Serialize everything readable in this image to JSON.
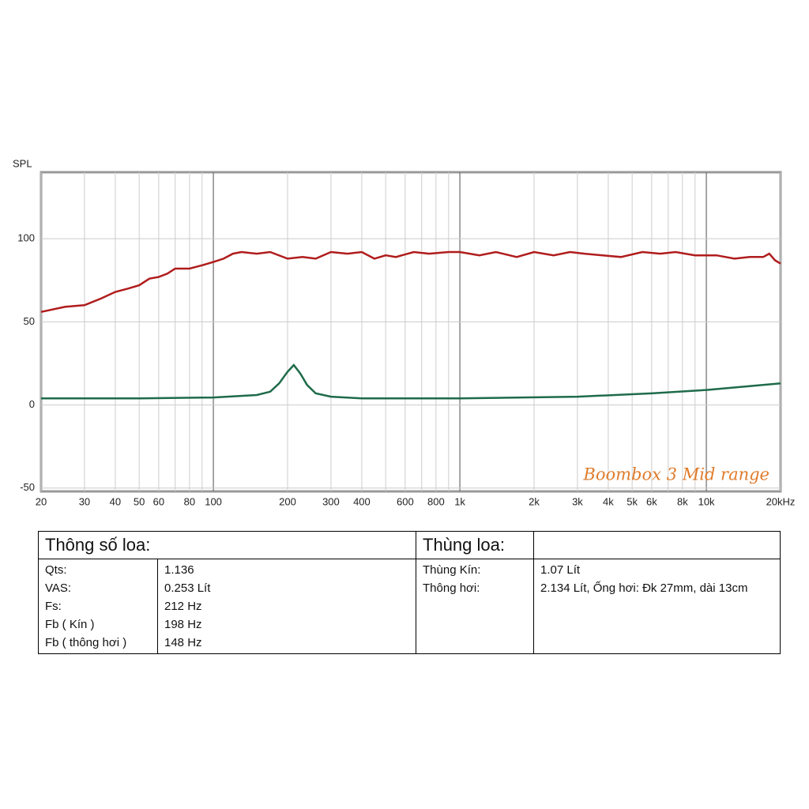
{
  "chart_data": {
    "type": "line",
    "y_label": "SPL",
    "annotation": "Boombox 3 Mid range",
    "xscale": "log",
    "grid": true,
    "xlim": [
      20,
      20000
    ],
    "ylim": [
      -52,
      140
    ],
    "yticks": [
      -50,
      0,
      50,
      100
    ],
    "xticks": [
      20,
      30,
      40,
      50,
      60,
      80,
      100,
      200,
      300,
      400,
      600,
      800,
      {
        "value": 1000,
        "label": "1k"
      },
      {
        "value": 2000,
        "label": "2k"
      },
      {
        "value": 3000,
        "label": "3k"
      },
      {
        "value": 4000,
        "label": "4k"
      },
      {
        "value": 5000,
        "label": "5k"
      },
      {
        "value": 6000,
        "label": "6k"
      },
      {
        "value": 8000,
        "label": "8k"
      },
      {
        "value": 10000,
        "label": "10k"
      },
      {
        "value": 20000,
        "label": "20kHz"
      }
    ],
    "xminor": [
      70,
      90,
      500,
      700,
      900,
      7000,
      9000
    ],
    "series": [
      {
        "color": "#b01c1c",
        "x": [
          20,
          25,
          30,
          35,
          40,
          45,
          50,
          55,
          60,
          65,
          70,
          80,
          90,
          100,
          110,
          120,
          130,
          150,
          170,
          200,
          230,
          260,
          300,
          350,
          400,
          450,
          500,
          550,
          650,
          750,
          900,
          1000,
          1200,
          1400,
          1700,
          2000,
          2400,
          2800,
          3200,
          3800,
          4500,
          5500,
          6500,
          7500,
          9000,
          11000,
          13000,
          15000,
          17000,
          18000,
          19000,
          20000
        ],
        "values": [
          56,
          59,
          60,
          64,
          68,
          70,
          72,
          76,
          77,
          79,
          82,
          82,
          84,
          86,
          88,
          91,
          92,
          91,
          92,
          88,
          89,
          88,
          92,
          91,
          92,
          88,
          90,
          89,
          92,
          91,
          92,
          92,
          90,
          92,
          89,
          92,
          90,
          92,
          91,
          90,
          89,
          92,
          91,
          92,
          90,
          90,
          88,
          89,
          89,
          91,
          87,
          85
        ]
      },
      {
        "color": "#1e6b4a",
        "x": [
          20,
          50,
          100,
          150,
          170,
          185,
          200,
          212,
          225,
          240,
          260,
          300,
          400,
          1000,
          3000,
          6000,
          10000,
          20000
        ],
        "values": [
          4,
          4,
          4.5,
          6,
          8,
          13,
          20,
          24,
          19,
          12,
          7,
          5,
          4,
          4,
          5,
          7,
          9,
          13
        ]
      }
    ]
  },
  "table": {
    "header": [
      "Thông số loa:",
      "Thùng loa:"
    ],
    "speaker_params": [
      [
        "Qts:",
        "1.136"
      ],
      [
        "VAS:",
        "0.253 Lít"
      ],
      [
        "Fs:",
        "212 Hz"
      ],
      [
        "Fb ( Kín )",
        "198 Hz"
      ],
      [
        "Fb ( thông hơi )",
        "148 Hz"
      ]
    ],
    "box_params": [
      [
        "Thùng Kín:",
        "1.07 Lít"
      ],
      [
        "Thông hơi:",
        "2.134 Lít, Ống hơi: Đk 27mm, dài 13cm"
      ]
    ]
  }
}
